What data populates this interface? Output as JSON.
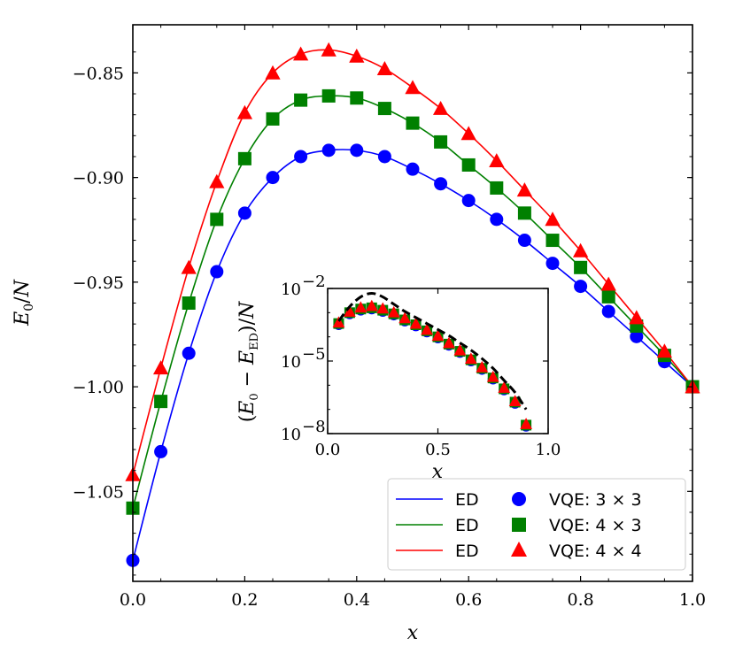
{
  "chart_data": [
    {
      "type": "line",
      "xlabel": "x",
      "ylabel": "E_0/N",
      "xlim": [
        0.0,
        1.0
      ],
      "ylim": [
        -1.093,
        -0.827
      ],
      "xticks": [
        "0.0",
        "0.2",
        "0.4",
        "0.6",
        "0.8",
        "1.0"
      ],
      "yticks": [
        "−0.85",
        "−0.90",
        "−0.95",
        "−1.00",
        "−1.05"
      ],
      "ytick_values": [
        -0.85,
        -0.9,
        -0.95,
        -1.0,
        -1.05
      ],
      "xtick_values": [
        0.0,
        0.2,
        0.4,
        0.6,
        0.8,
        1.0
      ],
      "grid": false,
      "legend_position": "bottom-right",
      "x": [
        0.0,
        0.05,
        0.1,
        0.15,
        0.2,
        0.25,
        0.3,
        0.35,
        0.4,
        0.45,
        0.5,
        0.55,
        0.6,
        0.65,
        0.7,
        0.75,
        0.8,
        0.85,
        0.9,
        0.95,
        1.0
      ],
      "series": [
        {
          "legend_label": "ED",
          "marker_label": "VQE: 3 × 3",
          "color": "#0000ff",
          "marker": "circle",
          "values": [
            -1.083,
            -1.031,
            -0.984,
            -0.945,
            -0.917,
            -0.9,
            -0.89,
            -0.887,
            -0.887,
            -0.89,
            -0.896,
            -0.903,
            -0.911,
            -0.92,
            -0.93,
            -0.941,
            -0.952,
            -0.964,
            -0.976,
            -0.988,
            -1.0
          ]
        },
        {
          "legend_label": "ED",
          "marker_label": "VQE: 4 × 3",
          "color": "#008000",
          "marker": "square",
          "values": [
            -1.058,
            -1.007,
            -0.96,
            -0.92,
            -0.891,
            -0.872,
            -0.863,
            -0.861,
            -0.862,
            -0.867,
            -0.874,
            -0.883,
            -0.894,
            -0.905,
            -0.917,
            -0.93,
            -0.943,
            -0.957,
            -0.971,
            -0.985,
            -1.0
          ]
        },
        {
          "legend_label": "ED",
          "marker_label": "VQE: 4 × 4",
          "color": "#ff0000",
          "marker": "triangle",
          "values": [
            -1.042,
            -0.991,
            -0.943,
            -0.902,
            -0.869,
            -0.85,
            -0.841,
            -0.839,
            -0.842,
            -0.848,
            -0.857,
            -0.867,
            -0.879,
            -0.892,
            -0.906,
            -0.92,
            -0.935,
            -0.951,
            -0.967,
            -0.983,
            -1.0
          ]
        }
      ]
    },
    {
      "type": "scatter",
      "xlabel": "x",
      "ylabel": "(E_0 − E_ED)/N",
      "xlim": [
        0.0,
        1.0
      ],
      "ylim_log10": [
        -8,
        -2
      ],
      "yscale": "log",
      "xticks": [
        "0.0",
        "0.5",
        "1.0"
      ],
      "xtick_values": [
        0.0,
        0.5,
        1.0
      ],
      "ytick_base": "10",
      "ytick_exponents": [
        "−2",
        "−5",
        "−8"
      ],
      "ytick_values_log10": [
        -2,
        -5,
        -8
      ],
      "x": [
        0.05,
        0.1,
        0.15,
        0.2,
        0.25,
        0.3,
        0.35,
        0.4,
        0.45,
        0.5,
        0.55,
        0.6,
        0.65,
        0.7,
        0.75,
        0.8,
        0.85,
        0.9
      ],
      "series": [
        {
          "color": "#0000ff",
          "marker": "circle",
          "log10_values": [
            -3.5,
            -3.05,
            -2.9,
            -2.85,
            -2.95,
            -3.1,
            -3.35,
            -3.55,
            -3.8,
            -4.05,
            -4.35,
            -4.65,
            -5.0,
            -5.35,
            -5.75,
            -6.2,
            -6.75,
            -7.7
          ]
        },
        {
          "color": "#008000",
          "marker": "square",
          "log10_values": [
            -3.45,
            -3.0,
            -2.85,
            -2.8,
            -2.9,
            -3.05,
            -3.3,
            -3.5,
            -3.75,
            -4.0,
            -4.3,
            -4.6,
            -4.95,
            -5.3,
            -5.7,
            -6.15,
            -6.7,
            -7.65
          ]
        },
        {
          "color": "#ff0000",
          "marker": "triangle",
          "log10_values": [
            -3.4,
            -2.95,
            -2.78,
            -2.72,
            -2.82,
            -2.98,
            -3.22,
            -3.45,
            -3.7,
            -3.95,
            -4.25,
            -4.55,
            -4.9,
            -5.25,
            -5.65,
            -6.1,
            -6.65,
            -7.6
          ]
        },
        {
          "color": "#000000",
          "line_style": "dashed",
          "x": [
            0.05,
            0.1,
            0.15,
            0.2,
            0.25,
            0.3,
            0.35,
            0.4,
            0.45,
            0.5,
            0.55,
            0.6,
            0.65,
            0.7,
            0.75,
            0.8,
            0.85,
            0.9
          ],
          "log10_values": [
            -3.35,
            -2.75,
            -2.35,
            -2.2,
            -2.35,
            -2.65,
            -2.95,
            -3.2,
            -3.45,
            -3.7,
            -3.95,
            -4.25,
            -4.55,
            -4.9,
            -5.3,
            -5.8,
            -6.3,
            -7.0
          ]
        }
      ]
    }
  ],
  "legend": {
    "line_label": "ED",
    "entries": [
      "VQE: 3 × 3",
      "VQE: 4 × 3",
      "VQE: 4 × 4"
    ]
  }
}
